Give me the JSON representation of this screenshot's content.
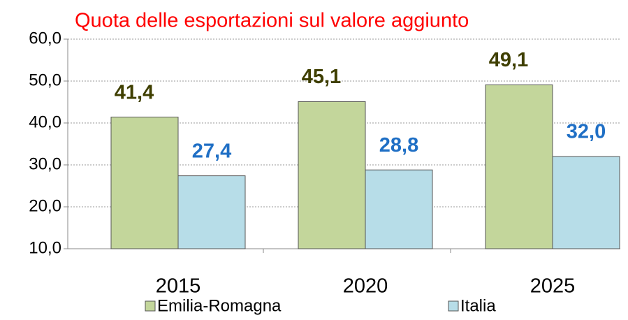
{
  "chart_data": {
    "type": "bar",
    "title": "Quota delle esportazioni sul valore aggiunto",
    "categories": [
      "2015",
      "2020",
      "2025"
    ],
    "series": [
      {
        "name": "Emilia-Romagna",
        "color": "#c3d69b",
        "label_color": "#3f3f00",
        "values": [
          41.4,
          45.1,
          49.1
        ],
        "value_labels": [
          "41,4",
          "45,1",
          "49,1"
        ]
      },
      {
        "name": "Italia",
        "color": "#b7dde8",
        "label_color": "#1f6fc5",
        "values": [
          27.4,
          28.8,
          32.0
        ],
        "value_labels": [
          "27,4",
          "28,8",
          "32,0"
        ]
      }
    ],
    "ylim": [
      10,
      60
    ],
    "yticks": [
      {
        "value": 10,
        "label": "10,0"
      },
      {
        "value": 20,
        "label": "20,0"
      },
      {
        "value": 30,
        "label": "30,0"
      },
      {
        "value": 40,
        "label": "40,0"
      },
      {
        "value": 50,
        "label": "50,0"
      },
      {
        "value": 60,
        "label": "60,0"
      }
    ],
    "grid": true
  }
}
